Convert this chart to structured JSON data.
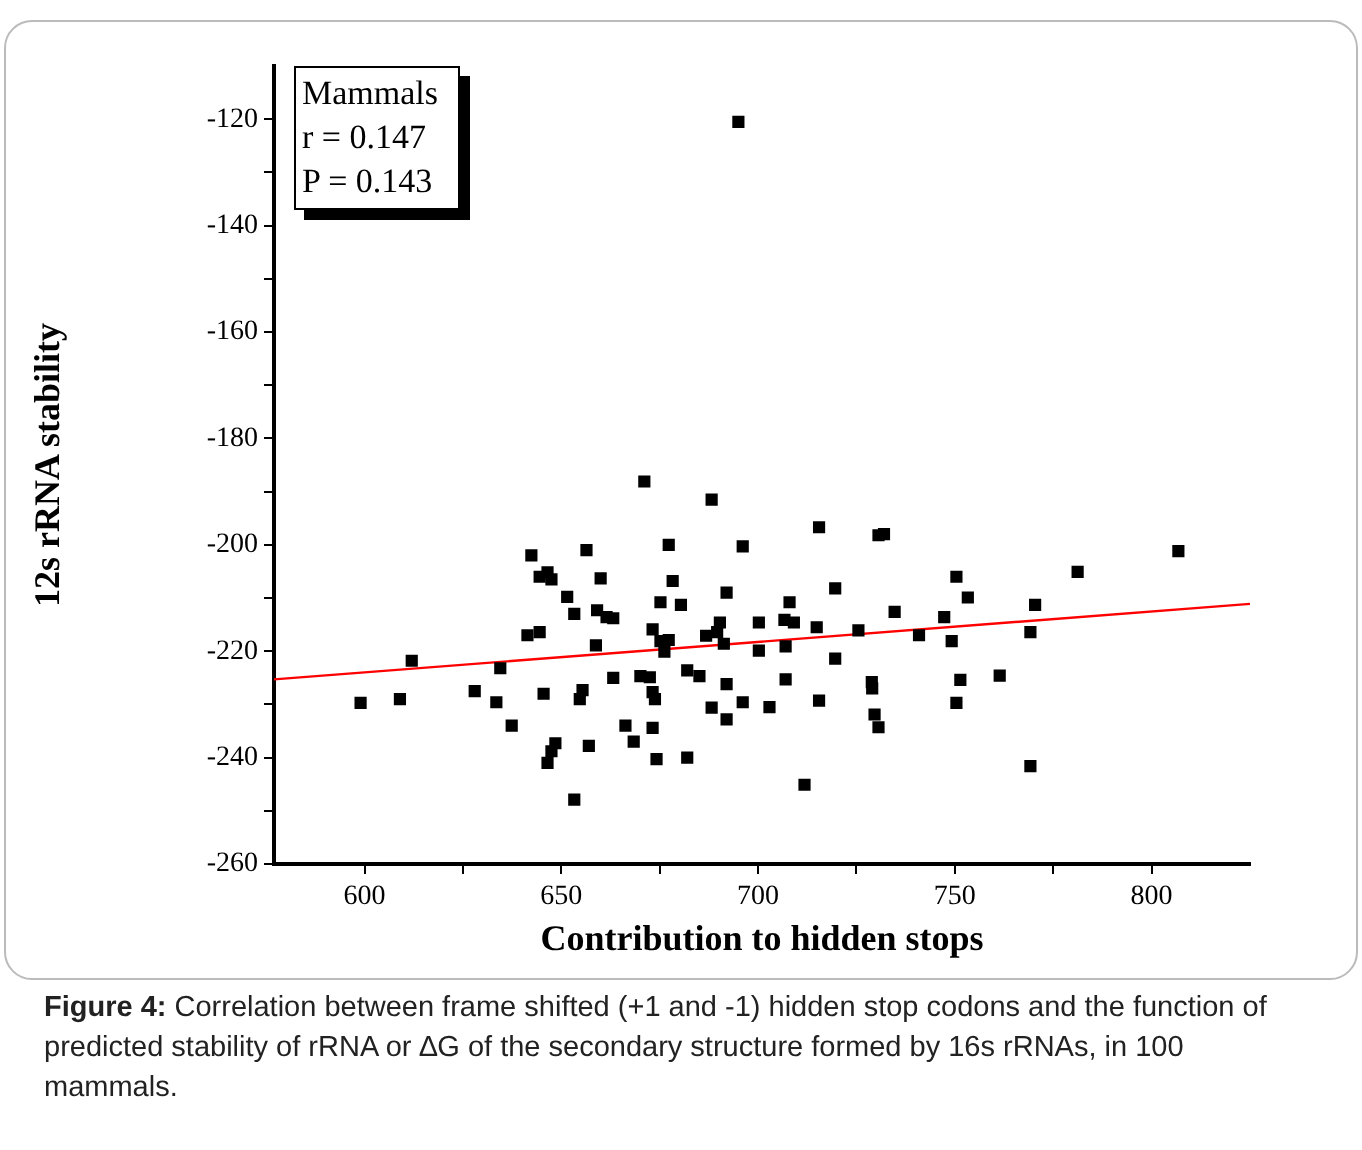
{
  "chart_data": {
    "type": "scatter",
    "xlabel": "Contribution to hidden stops",
    "ylabel": "12s rRNA stability",
    "xlim": [
      577,
      825
    ],
    "ylim": [
      -260,
      -110
    ],
    "xticks": [
      600,
      {
        "value": 625,
        "label": null
      },
      650,
      {
        "value": 675,
        "label": null
      },
      700,
      {
        "value": 725,
        "label": null
      },
      750,
      {
        "value": 775,
        "label": null
      },
      800
    ],
    "yticks": [
      -260,
      {
        "value": -250,
        "label": null
      },
      -240,
      {
        "value": -230,
        "label": null
      },
      -220,
      {
        "value": -210,
        "label": null
      },
      -200,
      {
        "value": -190,
        "label": null
      },
      -180,
      {
        "value": -170,
        "label": null
      },
      -160,
      {
        "value": -150,
        "label": null
      },
      -140,
      {
        "value": -130,
        "label": null
      },
      -120
    ],
    "grid": false,
    "legend": false,
    "marker": "square",
    "series": [
      {
        "color": "#000000",
        "x": [
          599,
          609,
          612,
          628,
          633.5,
          634.5,
          637.4,
          642.4,
          641.4,
          644.5,
          644.5,
          646.5,
          647.5,
          645.5,
          646.5,
          647.5,
          648.5,
          651.5,
          653.3,
          653.3,
          654.7,
          655.4,
          656.4,
          657,
          658.8,
          659.1,
          660,
          661.5,
          663.2,
          663.2,
          666.3,
          668.4,
          670.1,
          671.1,
          672.5,
          673.2,
          673.8,
          673.2,
          673.2,
          674.2,
          675.2,
          675.2,
          676.2,
          677.3,
          677.3,
          678.3,
          680.4,
          682,
          682,
          685.1,
          686.8,
          688.2,
          688.2,
          689.6,
          690.3,
          691.3,
          692,
          692,
          692,
          696.1,
          696.1,
          700.2,
          700.2,
          702.9,
          706.7,
          707,
          707,
          708,
          709.1,
          711.8,
          714.9,
          715.5,
          715.5,
          719.6,
          719.6,
          725.5,
          728.9,
          729,
          729.6,
          730.6,
          730.6,
          732,
          734.7,
          740.9,
          747.3,
          749.2,
          750.4,
          751.4,
          750.4,
          753.3,
          761.4,
          769.2,
          770.4,
          769.2,
          781.2,
          806.8,
          695
        ],
        "values": [
          -229.7,
          -229,
          -221.8,
          -227.5,
          -229.6,
          -223.2,
          -234,
          -202,
          -217,
          -216.4,
          -206,
          -205.2,
          -206.5,
          -228,
          -241,
          -238.8,
          -237.3,
          -209.8,
          -213,
          -247.9,
          -229,
          -227.3,
          -201,
          -237.8,
          -218.9,
          -212.3,
          -206.3,
          -213.6,
          -213.8,
          -225,
          -234,
          -237,
          -224.7,
          -188.1,
          -224.9,
          -227.7,
          -229,
          -215.9,
          -234.4,
          -240.3,
          -210.8,
          -218.1,
          -220.1,
          -217.9,
          -200,
          -206.8,
          -211.3,
          -240,
          -223.6,
          -224.7,
          -217.1,
          -191.5,
          -230.6,
          -216.4,
          -214.6,
          -218.6,
          -226.2,
          -232.8,
          -209,
          -229.6,
          -200.3,
          -214.6,
          -219.9,
          -230.5,
          -214.1,
          -219.1,
          -225.3,
          -210.8,
          -214.6,
          -245.1,
          -215.5,
          -196.7,
          -229.3,
          -208.2,
          -221.4,
          -216.1,
          -225.8,
          -227,
          -231.9,
          -234.3,
          -198.2,
          -198,
          -212.6,
          -217,
          -213.6,
          -218.1,
          -206,
          -225.4,
          -229.7,
          -209.9,
          -224.6,
          -216.4,
          -211.3,
          -241.6,
          -205.1,
          -201.2,
          -120.5
        ]
      },
      {
        "type": "line",
        "color": "#ff0000",
        "marker": "none",
        "line_style": "solid",
        "x": [
          577,
          825
        ],
        "values": [
          -225.3,
          -211.1
        ]
      }
    ],
    "annotations": [
      "Mammals",
      "r = 0.147",
      "P = 0.143",
      "Figure 4: Correlation between frame shifted (+1 and -1) hidden stop codons and the function of predicted stability of rRNA or ∆G of the secondary structure formed by 16s rRNAs, in 100 mammals."
    ]
  }
}
